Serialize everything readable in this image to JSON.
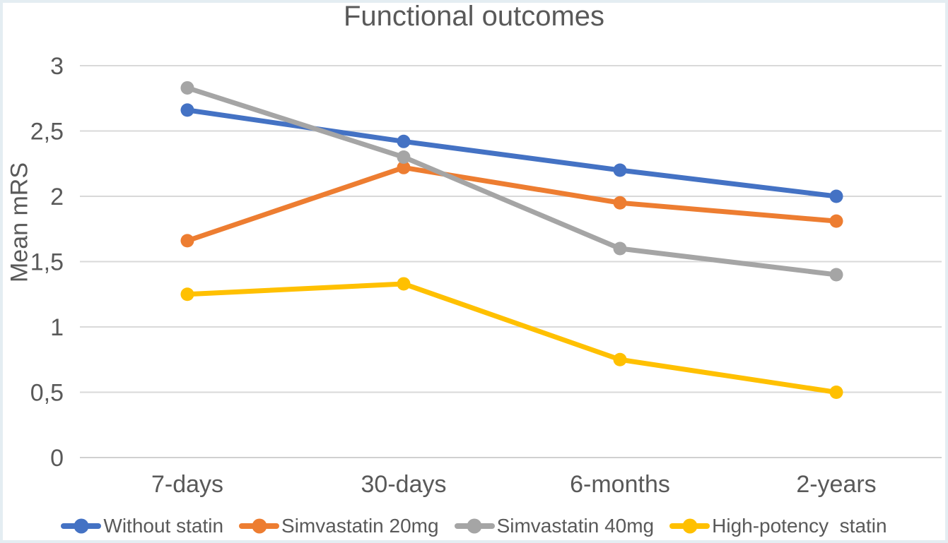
{
  "title": "Functional outcomes",
  "colors": {
    "frame": "#e4edf2",
    "text": "#595959",
    "gridline": "#d9d9d9",
    "baseline": "#d0d0d0"
  },
  "chart_data": {
    "type": "line",
    "title": "Functional outcomes",
    "xlabel": "",
    "ylabel": "Mean mRS",
    "ylim": [
      0,
      3
    ],
    "ytick_step": 0.5,
    "ytick_labels": [
      "0",
      "0,5",
      "1",
      "1,5",
      "2",
      "2,5",
      "3"
    ],
    "categories": [
      "7-days",
      "30-days",
      "6-months",
      "2-years"
    ],
    "series": [
      {
        "name": "Without statin",
        "color": "#4472C4",
        "values": [
          2.66,
          2.42,
          2.2,
          2.0
        ]
      },
      {
        "name": "Simvastatin 20mg",
        "color": "#ED7D31",
        "values": [
          1.66,
          2.22,
          1.95,
          1.81
        ]
      },
      {
        "name": "Simvastatin 40mg",
        "color": "#A5A5A5",
        "values": [
          2.83,
          2.3,
          1.6,
          1.4
        ]
      },
      {
        "name": "High-potency  statin",
        "color": "#FFC000",
        "values": [
          1.25,
          1.33,
          0.75,
          0.5
        ]
      }
    ],
    "grid": true,
    "legend_position": "bottom",
    "decimal_separator": ","
  }
}
